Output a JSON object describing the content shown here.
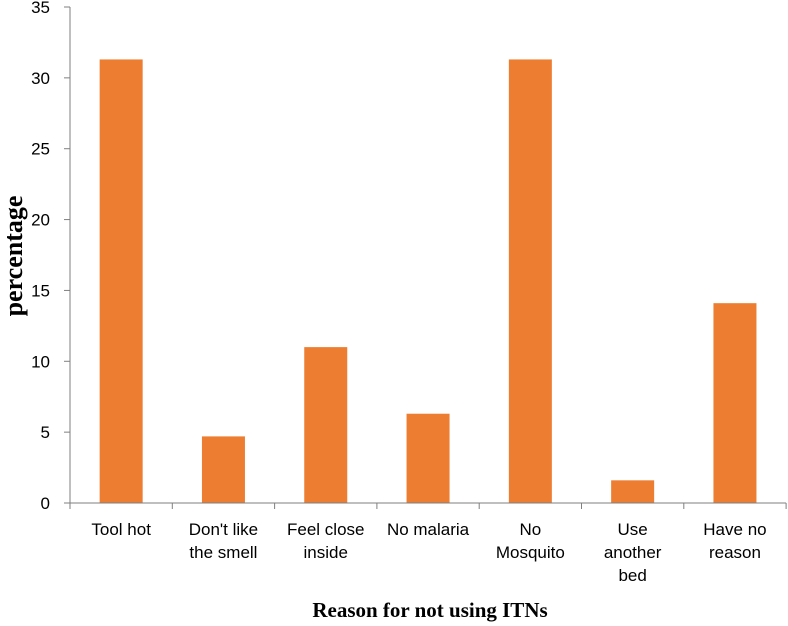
{
  "chart_data": {
    "type": "bar",
    "title": "",
    "xlabel": "Reason for not using ITNs",
    "ylabel": "percentage",
    "ylim": [
      0,
      35
    ],
    "yticks": [
      0,
      5,
      10,
      15,
      20,
      25,
      30,
      35
    ],
    "grid": false,
    "categories": [
      [
        "Tool hot"
      ],
      [
        "Don't like",
        "the smell"
      ],
      [
        "Feel close",
        "inside"
      ],
      [
        "No malaria"
      ],
      [
        "No",
        "Mosquito"
      ],
      [
        "Use",
        "another",
        "bed"
      ],
      [
        "Have no",
        "reason"
      ]
    ],
    "values": [
      31.3,
      4.7,
      11.0,
      6.3,
      31.3,
      1.6,
      14.1
    ],
    "bar_color": "#ed7d31"
  }
}
